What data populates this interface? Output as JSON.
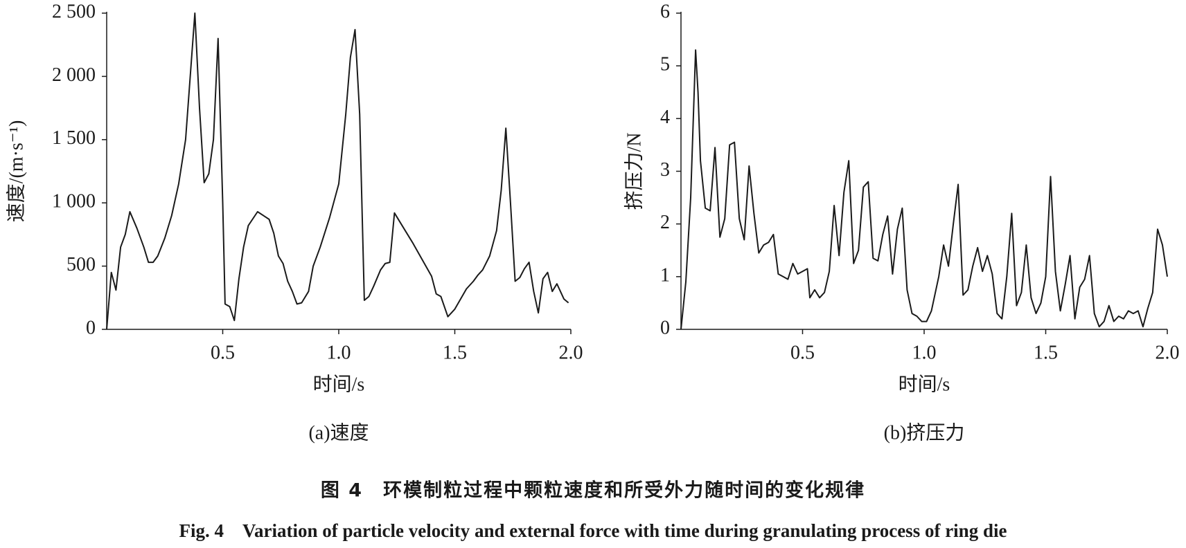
{
  "chart_data": [
    {
      "type": "line",
      "subtitle": "(a)速度",
      "xlabel": "时间/s",
      "ylabel": "速度/(m·s⁻¹)",
      "color": "#1a1a1a",
      "xlim": [
        0,
        2
      ],
      "xticks": [
        0.5,
        {
          "value": 1,
          "label": "1.0"
        },
        1.5,
        {
          "value": 2,
          "label": "2.0"
        }
      ],
      "ylim": [
        0,
        2500
      ],
      "yticks": [
        0,
        500,
        {
          "value": 1000,
          "label": "1 000"
        },
        {
          "value": 1500,
          "label": "1 500"
        },
        {
          "value": 2000,
          "label": "2 000"
        },
        {
          "value": 2500,
          "label": "2 500"
        }
      ],
      "x": [
        0,
        0.02,
        0.04,
        0.06,
        0.08,
        0.1,
        0.13,
        0.16,
        0.18,
        0.2,
        0.22,
        0.25,
        0.28,
        0.31,
        0.34,
        0.36,
        0.38,
        0.4,
        0.42,
        0.44,
        0.46,
        0.48,
        0.5,
        0.51,
        0.53,
        0.55,
        0.57,
        0.59,
        0.61,
        0.65,
        0.7,
        0.72,
        0.74,
        0.76,
        0.78,
        0.8,
        0.82,
        0.84,
        0.87,
        0.89,
        0.92,
        0.96,
        1.0,
        1.03,
        1.05,
        1.07,
        1.09,
        1.11,
        1.13,
        1.15,
        1.18,
        1.2,
        1.22,
        1.24,
        1.28,
        1.32,
        1.36,
        1.4,
        1.42,
        1.44,
        1.47,
        1.5,
        1.55,
        1.58,
        1.6,
        1.62,
        1.65,
        1.68,
        1.7,
        1.72,
        1.74,
        1.76,
        1.78,
        1.8,
        1.82,
        1.84,
        1.86,
        1.88,
        1.9,
        1.92,
        1.94,
        1.97,
        1.99
      ],
      "values": [
        0,
        450,
        310,
        650,
        750,
        930,
        800,
        650,
        530,
        530,
        580,
        720,
        900,
        1150,
        1500,
        2000,
        2500,
        1750,
        1160,
        1230,
        1500,
        2300,
        1000,
        200,
        180,
        70,
        400,
        650,
        820,
        930,
        870,
        760,
        580,
        520,
        380,
        300,
        200,
        210,
        300,
        500,
        650,
        880,
        1150,
        1700,
        2150,
        2370,
        1700,
        230,
        260,
        340,
        470,
        520,
        530,
        920,
        800,
        680,
        550,
        420,
        280,
        260,
        100,
        160,
        320,
        380,
        430,
        470,
        580,
        780,
        1100,
        1590,
        1000,
        380,
        410,
        480,
        530,
        300,
        130,
        400,
        450,
        300,
        360,
        240,
        210
      ]
    },
    {
      "type": "line",
      "subtitle": "(b)挤压力",
      "xlabel": "时间/s",
      "ylabel": "挤压力/N",
      "color": "#1a1a1a",
      "xlim": [
        0,
        2
      ],
      "xticks": [
        0.5,
        {
          "value": 1,
          "label": "1.0"
        },
        1.5,
        {
          "value": 2,
          "label": "2.0"
        }
      ],
      "ylim": [
        0,
        6
      ],
      "yticks": [
        0,
        1,
        2,
        3,
        4,
        5,
        6
      ],
      "x": [
        0,
        0.02,
        0.04,
        0.06,
        0.07,
        0.08,
        0.1,
        0.12,
        0.14,
        0.16,
        0.18,
        0.2,
        0.22,
        0.24,
        0.26,
        0.28,
        0.3,
        0.32,
        0.34,
        0.36,
        0.38,
        0.4,
        0.42,
        0.44,
        0.46,
        0.48,
        0.5,
        0.52,
        0.53,
        0.55,
        0.57,
        0.59,
        0.61,
        0.63,
        0.65,
        0.67,
        0.69,
        0.71,
        0.73,
        0.75,
        0.77,
        0.79,
        0.81,
        0.83,
        0.85,
        0.87,
        0.89,
        0.91,
        0.93,
        0.95,
        0.97,
        0.99,
        1.01,
        1.03,
        1.06,
        1.08,
        1.1,
        1.12,
        1.14,
        1.16,
        1.18,
        1.2,
        1.22,
        1.24,
        1.26,
        1.28,
        1.3,
        1.32,
        1.34,
        1.36,
        1.38,
        1.4,
        1.42,
        1.44,
        1.46,
        1.48,
        1.5,
        1.52,
        1.54,
        1.56,
        1.58,
        1.6,
        1.62,
        1.64,
        1.66,
        1.68,
        1.7,
        1.72,
        1.74,
        1.76,
        1.78,
        1.8,
        1.82,
        1.84,
        1.86,
        1.88,
        1.9,
        1.92,
        1.94,
        1.96,
        1.98,
        2.0
      ],
      "values": [
        0,
        0.9,
        2.5,
        5.3,
        4.5,
        3.2,
        2.3,
        2.25,
        3.45,
        1.75,
        2.1,
        3.5,
        3.55,
        2.1,
        1.7,
        3.1,
        2.2,
        1.45,
        1.6,
        1.65,
        1.8,
        1.05,
        1.0,
        0.95,
        1.25,
        1.05,
        1.1,
        1.15,
        0.6,
        0.75,
        0.6,
        0.7,
        1.1,
        2.35,
        1.4,
        2.6,
        3.2,
        1.25,
        1.5,
        2.7,
        2.8,
        1.35,
        1.3,
        1.8,
        2.15,
        1.05,
        1.9,
        2.3,
        0.75,
        0.3,
        0.25,
        0.15,
        0.15,
        0.35,
        1.0,
        1.6,
        1.2,
        2.0,
        2.75,
        0.65,
        0.75,
        1.2,
        1.55,
        1.1,
        1.4,
        1.05,
        0.3,
        0.2,
        1.0,
        2.2,
        0.45,
        0.7,
        1.6,
        0.6,
        0.3,
        0.5,
        1.0,
        2.9,
        1.1,
        0.35,
        0.85,
        1.4,
        0.2,
        0.8,
        0.95,
        1.4,
        0.3,
        0.05,
        0.15,
        0.45,
        0.15,
        0.25,
        0.2,
        0.35,
        0.3,
        0.35,
        0.05,
        0.4,
        0.7,
        1.9,
        1.6,
        1.0
      ]
    }
  ],
  "caption_cn": "图 4　环模制粒过程中颗粒速度和所受外力随时间的变化规律",
  "caption_en": "Fig. 4　Variation of particle velocity and external force with time during granulating process of ring die"
}
